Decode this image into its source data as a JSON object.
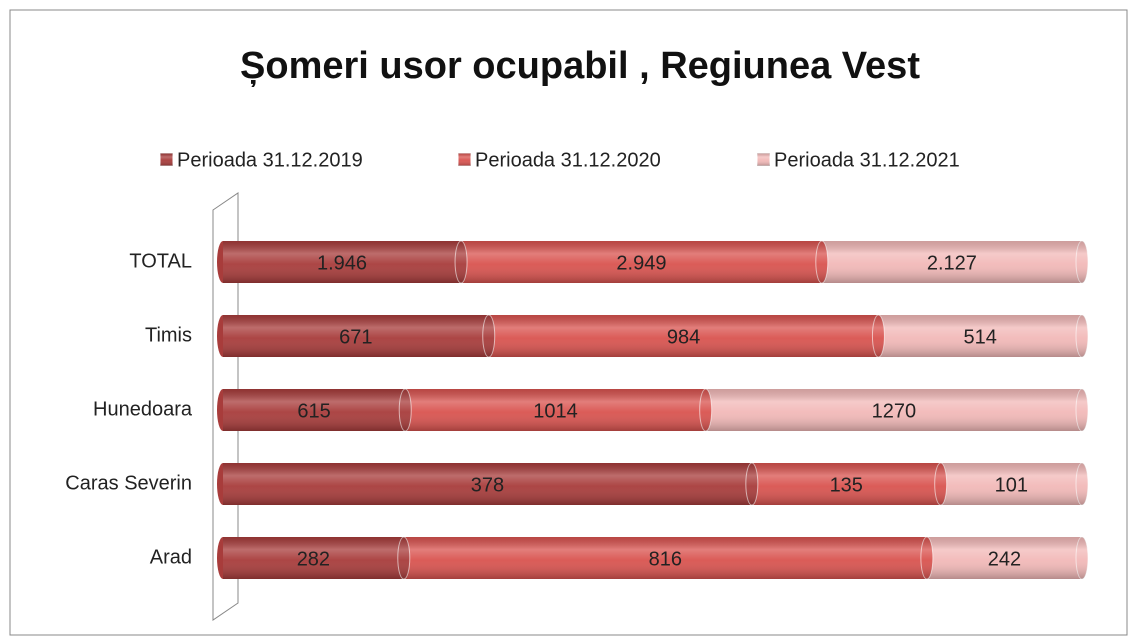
{
  "chart_data": {
    "type": "bar",
    "stacked": "percent",
    "orientation": "horizontal",
    "title": "Șomeri usor ocupabil , Regiunea Vest",
    "categories": [
      "TOTAL",
      "Timis",
      "Hunedoara",
      "Caras Severin",
      "Arad"
    ],
    "series": [
      {
        "name": "Perioada  31.12.2019",
        "color": "#a83c3b",
        "values": [
          1946,
          671,
          615,
          378,
          282
        ],
        "value_labels": [
          "1.946",
          "671",
          "615",
          "378",
          "282"
        ]
      },
      {
        "name": "Perioada  31.12.2020",
        "color": "#d9534f",
        "values": [
          2949,
          984,
          1014,
          135,
          816
        ],
        "value_labels": [
          "2.949",
          "984",
          "1014",
          "135",
          "816"
        ]
      },
      {
        "name": "Perioada  31.12.2021",
        "color": "#f2b9b8",
        "values": [
          2127,
          514,
          1270,
          101,
          242
        ],
        "value_labels": [
          "2.127",
          "514",
          "1270",
          "101",
          "242"
        ]
      }
    ],
    "legend": "top"
  }
}
